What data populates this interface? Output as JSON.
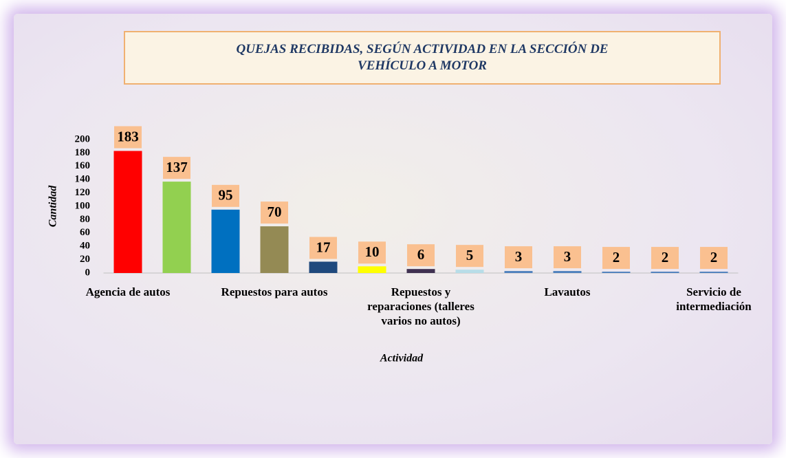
{
  "chart_data": {
    "type": "bar",
    "title": "QUEJAS RECIBIDAS, SEGÚN ACTIVIDAD EN LA SECCIÓN DE VEHÍCULO A MOTOR",
    "x_label": "Actividad",
    "y_label": "Cantidad",
    "categories": [
      "Agencia de autos",
      null,
      null,
      "Repuestos para autos",
      null,
      null,
      "Repuestos y reparaciones (talleres varios no autos)",
      null,
      null,
      "Lavautos",
      null,
      null,
      "Servicio de intermediación"
    ],
    "values": [
      183,
      137,
      95,
      70,
      17,
      10,
      6,
      5,
      3,
      3,
      2,
      2,
      2
    ],
    "colors": [
      "#ff0000",
      "#92d050",
      "#0070c0",
      "#948a54",
      "#1f497d",
      "#ffff00",
      "#403151",
      "#b7dde8",
      "#4f81bd",
      "#4f81bd",
      "#4f81bd",
      "#4f81bd",
      "#4f81bd"
    ],
    "ylim": [
      0,
      200
    ],
    "yticks": [
      0,
      20,
      40,
      60,
      80,
      100,
      120,
      140,
      160,
      180,
      200
    ]
  }
}
